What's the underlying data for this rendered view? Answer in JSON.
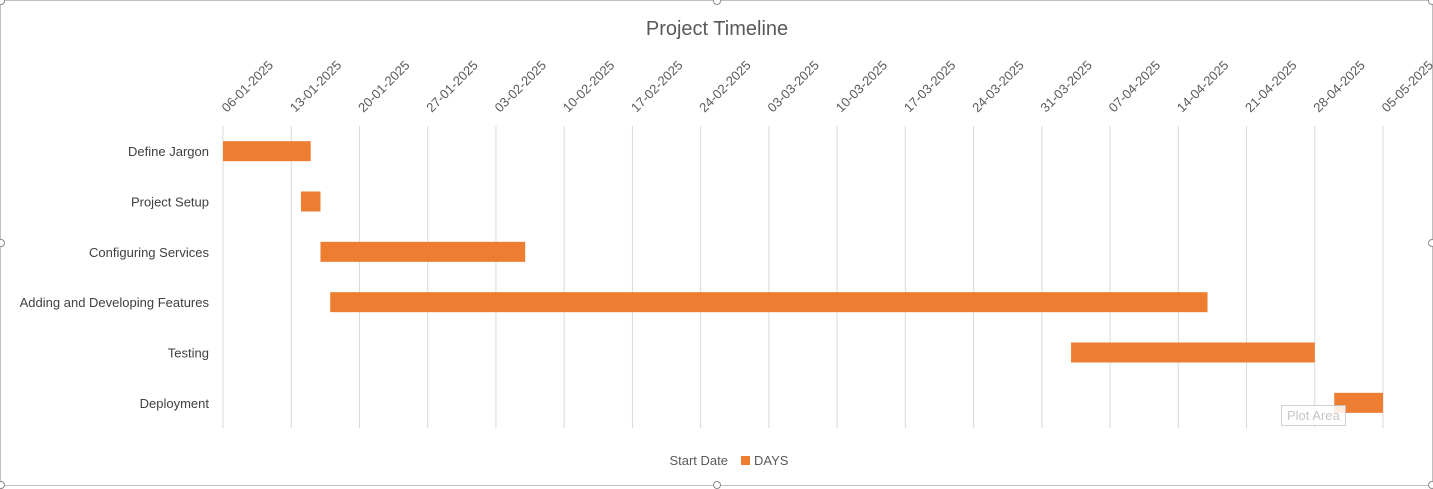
{
  "chart_data": {
    "type": "bar",
    "orientation": "horizontal",
    "stacked": true,
    "title": "Project Timeline",
    "x_ticks": [
      "06-01-2025",
      "13-01-2025",
      "20-01-2025",
      "27-01-2025",
      "03-02-2025",
      "10-02-2025",
      "17-02-2025",
      "24-02-2025",
      "03-03-2025",
      "10-03-2025",
      "17-03-2025",
      "24-03-2025",
      "31-03-2025",
      "07-04-2025",
      "14-04-2025",
      "21-04-2025",
      "28-04-2025",
      "05-05-2025"
    ],
    "xlim": [
      "06-01-2025",
      "05-05-2025"
    ],
    "x_axis_position": "top",
    "grid": true,
    "categories": [
      "Define Jargon",
      "Project Setup",
      "Configuring Services",
      "Adding and Developing Features",
      "Testing",
      "Deployment"
    ],
    "series": [
      {
        "name": "Start Date",
        "visible": false,
        "values": [
          "06-01-2025",
          "14-01-2025",
          "16-01-2025",
          "17-01-2025",
          "03-04-2025",
          "30-04-2025"
        ]
      },
      {
        "name": "DAYS",
        "color": "#ED7D31",
        "values": [
          9,
          2,
          21,
          90,
          25,
          5
        ]
      }
    ],
    "legend": {
      "position": "bottom",
      "entries": [
        "Start Date",
        "DAYS"
      ]
    }
  },
  "overlay": {
    "tooltip": "Plot Area"
  }
}
